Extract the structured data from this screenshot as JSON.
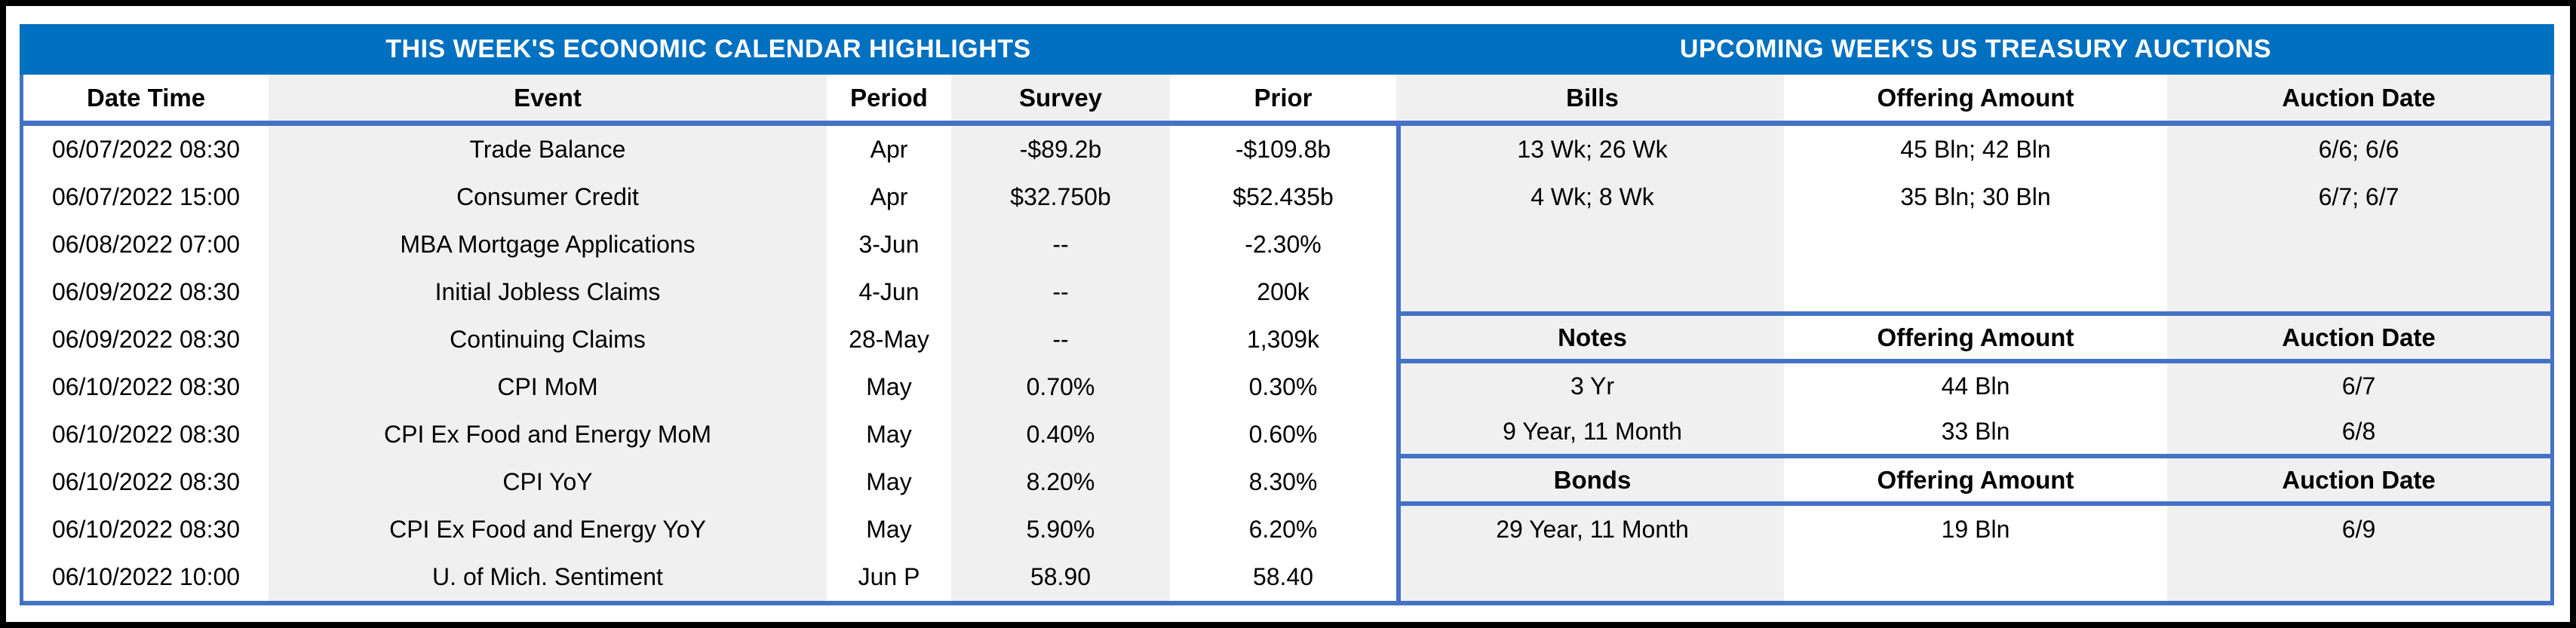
{
  "colors": {
    "banner_blue": "#0070C0",
    "border_blue": "#4472C4",
    "stripe_gray": "#F0F0F0",
    "frame_black": "#000000"
  },
  "calendar": {
    "title": "THIS WEEK'S ECONOMIC CALENDAR HIGHLIGHTS",
    "columns": [
      "Date Time",
      "Event",
      "Period",
      "Survey",
      "Prior"
    ],
    "rows": [
      [
        "06/07/2022 08:30",
        "Trade Balance",
        "Apr",
        "-$89.2b",
        "-$109.8b"
      ],
      [
        "06/07/2022 15:00",
        "Consumer Credit",
        "Apr",
        "$32.750b",
        "$52.435b"
      ],
      [
        "06/08/2022 07:00",
        "MBA Mortgage Applications",
        "3-Jun",
        "--",
        "-2.30%"
      ],
      [
        "06/09/2022 08:30",
        "Initial Jobless Claims",
        "4-Jun",
        "--",
        "200k"
      ],
      [
        "06/09/2022 08:30",
        "Continuing Claims",
        "28-May",
        "--",
        "1,309k"
      ],
      [
        "06/10/2022 08:30",
        "CPI MoM",
        "May",
        "0.70%",
        "0.30%"
      ],
      [
        "06/10/2022 08:30",
        "CPI Ex Food and Energy MoM",
        "May",
        "0.40%",
        "0.60%"
      ],
      [
        "06/10/2022 08:30",
        "CPI YoY",
        "May",
        "8.20%",
        "8.30%"
      ],
      [
        "06/10/2022 08:30",
        "CPI Ex Food and Energy YoY",
        "May",
        "5.90%",
        "6.20%"
      ],
      [
        "06/10/2022 10:00",
        "U. of Mich. Sentiment",
        "Jun P",
        "58.90",
        "58.40"
      ]
    ]
  },
  "auctions": {
    "title": "UPCOMING WEEK'S US TREASURY AUCTIONS",
    "bills": {
      "header": [
        "Bills",
        "Offering Amount",
        "Auction Date"
      ],
      "rows": [
        [
          "13 Wk; 26 Wk",
          "45 Bln; 42 Bln",
          "6/6; 6/6"
        ],
        [
          "4 Wk; 8 Wk",
          "35 Bln; 30 Bln",
          "6/7; 6/7"
        ]
      ]
    },
    "notes": {
      "header": [
        "Notes",
        "Offering Amount",
        "Auction Date"
      ],
      "rows": [
        [
          "3 Yr",
          "44 Bln",
          "6/7"
        ],
        [
          "9 Year, 11 Month",
          "33 Bln",
          "6/8"
        ]
      ]
    },
    "bonds": {
      "header": [
        "Bonds",
        "Offering Amount",
        "Auction Date"
      ],
      "rows": [
        [
          "29 Year, 11 Month",
          "19 Bln",
          "6/9"
        ]
      ]
    }
  }
}
